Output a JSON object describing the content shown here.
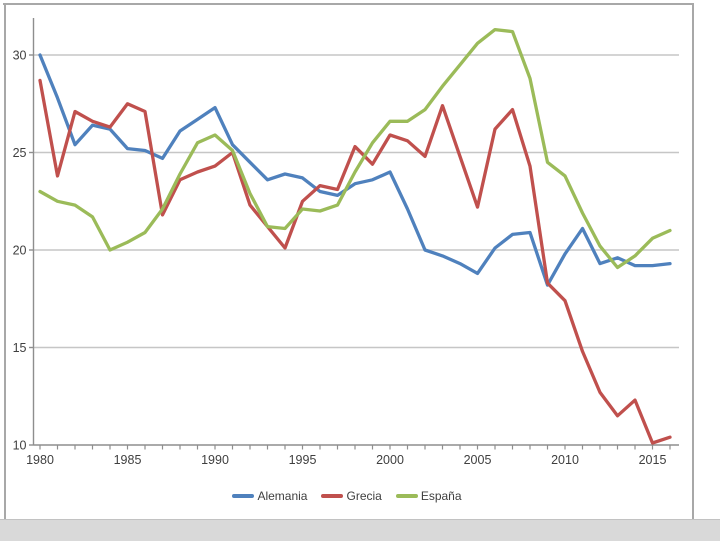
{
  "frame": {
    "background": "#ffffff",
    "border_color": "#a8a8a8",
    "bottom_bar_color": "#d9d9d9",
    "gridline_color": "#c6c6c6",
    "axis_color": "#8e8e8e",
    "tick_label_color": "#3f3f3f"
  },
  "chart_data": {
    "type": "line",
    "title": "",
    "xlabel": "",
    "ylabel": "",
    "x_start": 1980,
    "x_end": 2016,
    "x": [
      1980,
      1981,
      1982,
      1983,
      1984,
      1985,
      1986,
      1987,
      1988,
      1989,
      1990,
      1991,
      1992,
      1993,
      1994,
      1995,
      1996,
      1997,
      1998,
      1999,
      2000,
      2001,
      2002,
      2003,
      2004,
      2005,
      2006,
      2007,
      2008,
      2009,
      2010,
      2011,
      2012,
      2013,
      2014,
      2015,
      2016
    ],
    "series": [
      {
        "name": "Alemania",
        "color": "#4F81BD",
        "values": [
          30.0,
          27.8,
          25.4,
          26.4,
          26.2,
          25.2,
          25.1,
          24.7,
          26.1,
          26.7,
          27.3,
          25.4,
          24.5,
          23.6,
          23.9,
          23.7,
          23.0,
          22.8,
          23.4,
          23.6,
          24.0,
          22.1,
          20.0,
          19.7,
          19.3,
          18.8,
          20.1,
          20.8,
          20.9,
          18.2,
          19.8,
          21.1,
          19.3,
          19.6,
          19.2,
          19.2,
          19.3
        ]
      },
      {
        "name": "Grecia",
        "color": "#C0504D",
        "values": [
          28.7,
          23.8,
          27.1,
          26.6,
          26.3,
          27.5,
          27.1,
          21.8,
          23.6,
          24.0,
          24.3,
          25.0,
          22.3,
          21.2,
          20.1,
          22.5,
          23.3,
          23.1,
          25.3,
          24.4,
          25.9,
          25.6,
          24.8,
          27.4,
          24.8,
          22.2,
          26.2,
          27.2,
          24.3,
          18.3,
          17.4,
          14.8,
          12.7,
          11.5,
          12.3,
          10.1,
          10.4
        ]
      },
      {
        "name": "España",
        "color": "#9BBB59",
        "values": [
          23.0,
          22.5,
          22.3,
          21.7,
          20.0,
          20.4,
          20.9,
          22.1,
          23.9,
          25.5,
          25.9,
          25.1,
          22.9,
          21.2,
          21.1,
          22.1,
          22.0,
          22.3,
          24.0,
          25.5,
          26.6,
          26.6,
          27.2,
          28.4,
          29.5,
          30.6,
          31.3,
          31.2,
          28.8,
          24.5,
          23.8,
          21.9,
          20.2,
          19.1,
          19.7,
          20.6,
          21.0
        ]
      }
    ],
    "xticks": [
      1980,
      1985,
      1990,
      1995,
      2000,
      2005,
      2010,
      2015
    ],
    "yticks": [
      10,
      15,
      20,
      25,
      30
    ],
    "ylim": [
      10,
      32
    ],
    "grid": "horizontal",
    "legend_position": "bottom"
  }
}
